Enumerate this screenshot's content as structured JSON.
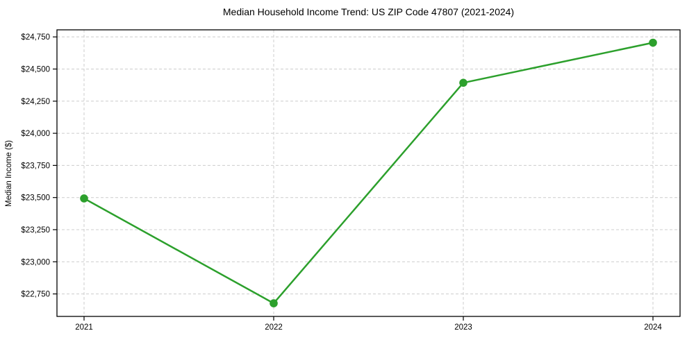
{
  "chart_data": {
    "type": "line",
    "title": "Median Household Income Trend: US ZIP Code 47807 (2021-2024)",
    "xlabel": "",
    "ylabel": "Median Income ($)",
    "x_labels": [
      "2021",
      "2022",
      "2023",
      "2024"
    ],
    "series": [
      {
        "values": [
          23493,
          22677,
          24393,
          24705
        ],
        "color": "#2ca02c"
      }
    ],
    "y_ticks": [
      {
        "value": 22750,
        "label": "$22,750"
      },
      {
        "value": 23000,
        "label": "$23,000"
      },
      {
        "value": 23250,
        "label": "$23,250"
      },
      {
        "value": 23500,
        "label": "$23,500"
      },
      {
        "value": 23750,
        "label": "$23,750"
      },
      {
        "value": 24000,
        "label": "$24,000"
      },
      {
        "value": 24250,
        "label": "$24,250"
      },
      {
        "value": 24500,
        "label": "$24,500"
      },
      {
        "value": 24750,
        "label": "$24,750"
      }
    ],
    "ylim": [
      22575,
      24805
    ],
    "grid": true,
    "grid_style": "dashed",
    "legend": false,
    "colors": {
      "line": "#2ca02c",
      "grid": "#cccccc",
      "axis": "#000000",
      "background": "#ffffff",
      "text": "#000000"
    }
  }
}
